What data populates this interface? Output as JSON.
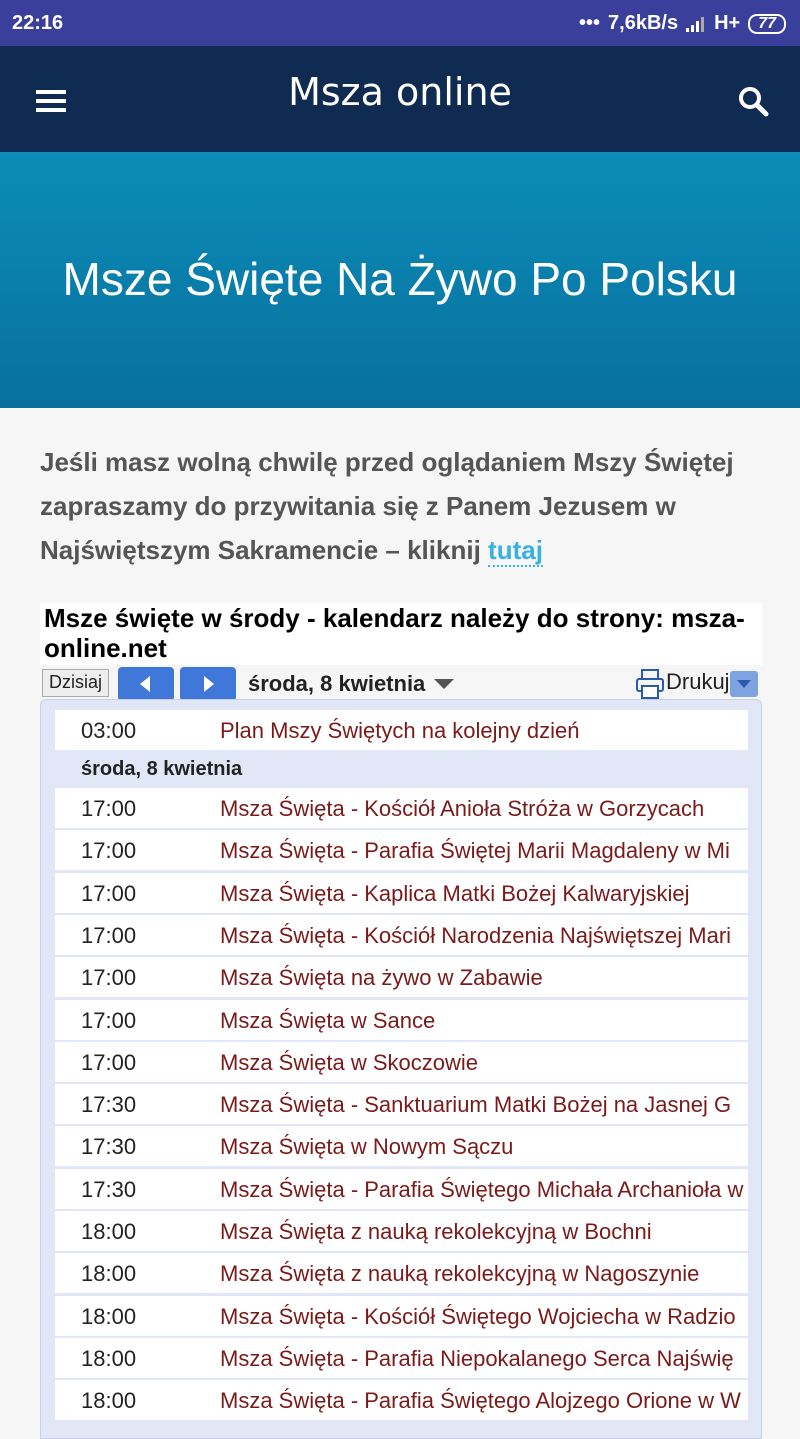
{
  "status": {
    "time": "22:16",
    "speed": "7,6kB/s",
    "network": "H+",
    "battery": "77"
  },
  "nav": {
    "title": "Msza online"
  },
  "hero": {
    "title": "Msze Święte Na Żywo Po Polsku"
  },
  "intro": {
    "text": "Jeśli masz wolną chwilę przed oglądaniem Mszy Świętej zapraszamy do przywitania się z Panem Jezusem w Najświętszym Sakramencie – kliknij",
    "link": "tutaj"
  },
  "calendar": {
    "title": "Msze święte w środy - kalendarz należy do strony: msza-online.net",
    "today_button": "Dzisiaj",
    "date": "środa, 8 kwietnia",
    "print": "Drukuj",
    "first_event": {
      "time": "03:00",
      "title": "Plan Mszy Świętych na kolejny dzień"
    },
    "day_header": "środa, 8 kwietnia",
    "events": [
      {
        "time": "17:00",
        "title": "Msza Święta - Kościół Anioła Stróża w Gorzycach"
      },
      {
        "time": "17:00",
        "title": "Msza Święta - Parafia Świętej Marii Magdaleny w Mi"
      },
      {
        "time": "17:00",
        "title": "Msza Święta - Kaplica Matki Bożej Kalwaryjskiej"
      },
      {
        "time": "17:00",
        "title": "Msza Święta - Kościół Narodzenia Najświętszej Mari"
      },
      {
        "time": "17:00",
        "title": "Msza Święta na żywo w Zabawie"
      },
      {
        "time": "17:00",
        "title": "Msza Święta w Sance"
      },
      {
        "time": "17:00",
        "title": "Msza Święta w Skoczowie"
      },
      {
        "time": "17:30",
        "title": "Msza Święta - Sanktuarium Matki Bożej na Jasnej G"
      },
      {
        "time": "17:30",
        "title": "Msza Święta w Nowym Sączu"
      },
      {
        "time": "17:30",
        "title": "Msza Święta - Parafia Świętego Michała Archanioła w"
      },
      {
        "time": "18:00",
        "title": "Msza Święta z nauką rekolekcyjną w Bochni"
      },
      {
        "time": "18:00",
        "title": "Msza Święta z nauką rekolekcyjną w Nagoszynie"
      },
      {
        "time": "18:00",
        "title": "Msza Święta - Kościół Świętego Wojciecha w Radzio"
      },
      {
        "time": "18:00",
        "title": "Msza Święta - Parafia Niepokalanego Serca Najświę"
      },
      {
        "time": "18:00",
        "title": "Msza Święta - Parafia Świętego Alojzego Orione w W"
      }
    ]
  }
}
